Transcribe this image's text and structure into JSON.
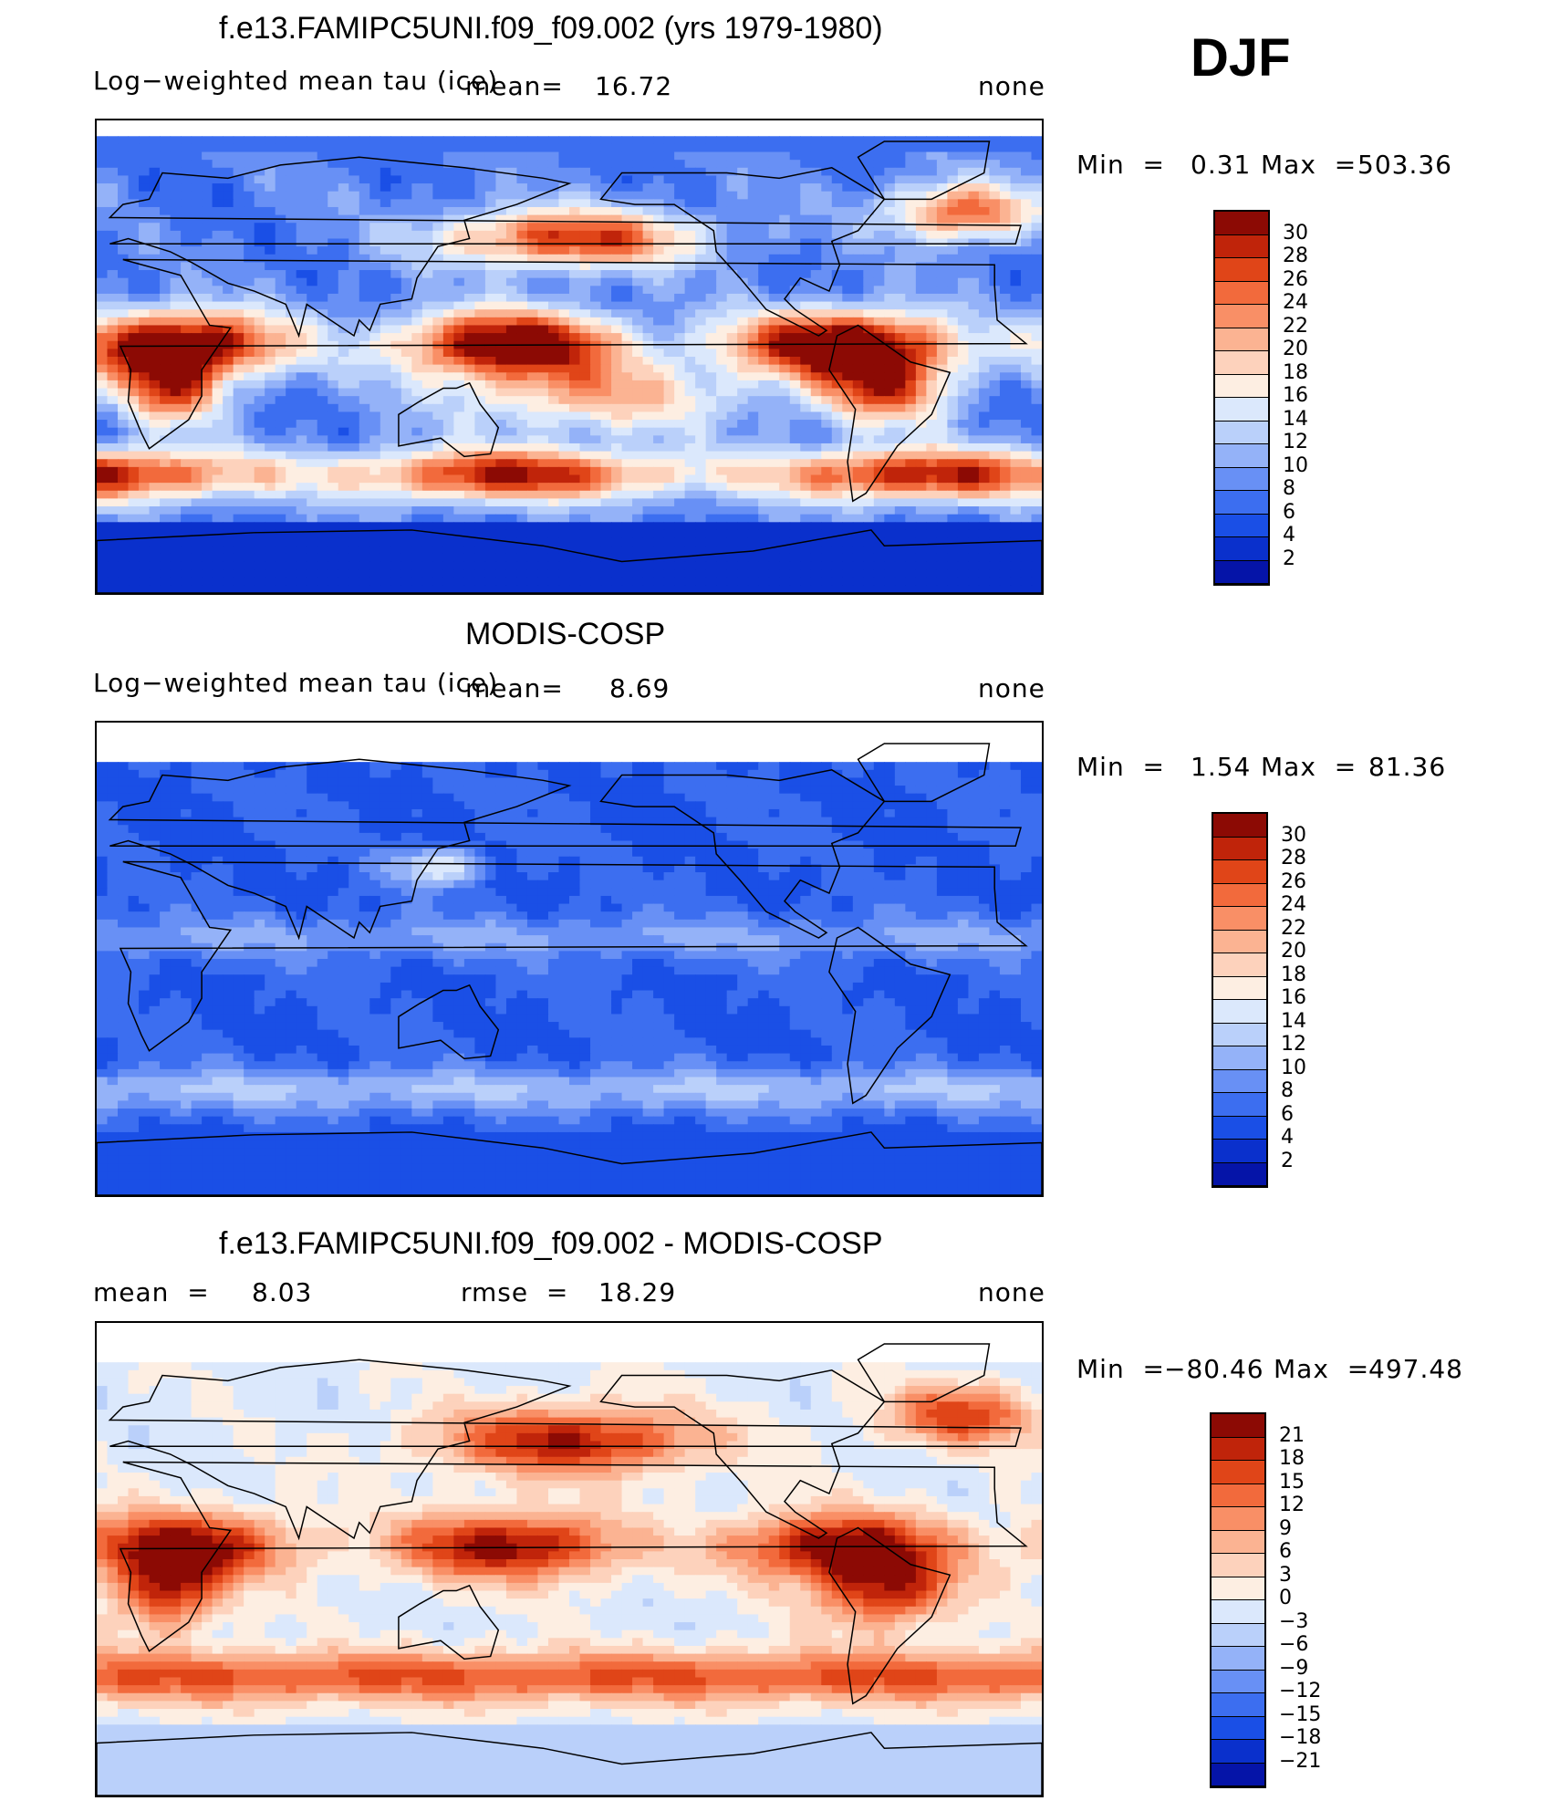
{
  "season": "DJF",
  "colors": {
    "seq": [
      "#000080",
      "#0514a8",
      "#0a30cc",
      "#1a4fe6",
      "#3c6ef0",
      "#6890f5",
      "#94b2f8",
      "#bad0fa",
      "#dbe8fc",
      "#fdeee2",
      "#fdd2bc",
      "#fbb392",
      "#f98f66",
      "#f26a3c",
      "#e04518",
      "#c0240a",
      "#8c0a04"
    ],
    "div": [
      "#000080",
      "#0514a8",
      "#0a30cc",
      "#1a4fe6",
      "#3c6ef0",
      "#6890f5",
      "#94b2f8",
      "#bad0fa",
      "#dbe8fc",
      "#fdeee2",
      "#fdd2bc",
      "#fbb392",
      "#f98f66",
      "#f26a3c",
      "#e04518",
      "#c0240a",
      "#8c0a04"
    ]
  },
  "panels": [
    {
      "title": "f.e13.FAMIPC5UNI.f09_f09.002 (yrs 1979-1980)",
      "variable": "Log−weighted mean tau (ice)",
      "mean_label": "mean=",
      "mean": "16.72",
      "units": "none",
      "min_label": "Min  =",
      "min": "0.31",
      "max_label": "Max  =",
      "max": "503.36"
    },
    {
      "title": "MODIS-COSP",
      "variable": "Log−weighted mean tau (ice)",
      "mean_label": "mean=",
      "mean": "8.69",
      "units": "none",
      "min_label": "Min  =",
      "min": "1.54",
      "max_label": "Max  =",
      "max": "81.36"
    },
    {
      "title": "f.e13.FAMIPC5UNI.f09_f09.002 - MODIS-COSP",
      "mean_label": "mean  =",
      "mean": "8.03",
      "rmse_label": "rmse  =",
      "rmse": "18.29",
      "units": "none",
      "min_label": "Min  =",
      "min": "−80.46",
      "max_label": "Max  =",
      "max": "497.48"
    }
  ],
  "chart_data": [
    {
      "type": "heatmap",
      "title": "f.e13.FAMIPC5UNI.f09_f09.002 (yrs 1979-1980)",
      "colorbar_levels": [
        "30",
        "28",
        "26",
        "24",
        "22",
        "20",
        "18",
        "16",
        "14",
        "12",
        "10",
        "8",
        "6",
        "4",
        "2"
      ],
      "mean": 16.72,
      "min": 0.31,
      "max": 503.36
    },
    {
      "type": "heatmap",
      "title": "MODIS-COSP",
      "colorbar_levels": [
        "30",
        "28",
        "26",
        "24",
        "22",
        "20",
        "18",
        "16",
        "14",
        "12",
        "10",
        "8",
        "6",
        "4",
        "2"
      ],
      "mean": 8.69,
      "min": 1.54,
      "max": 81.36
    },
    {
      "type": "heatmap",
      "title": "f.e13.FAMIPC5UNI.f09_f09.002 - MODIS-COSP",
      "colorbar_levels": [
        "21",
        "18",
        "15",
        "12",
        "9",
        "6",
        "3",
        "0",
        "−3",
        "−6",
        "−9",
        "−12",
        "−15",
        "−18",
        "−21"
      ],
      "mean": 8.03,
      "rmse": 18.29,
      "min": -80.46,
      "max": 497.48
    }
  ]
}
